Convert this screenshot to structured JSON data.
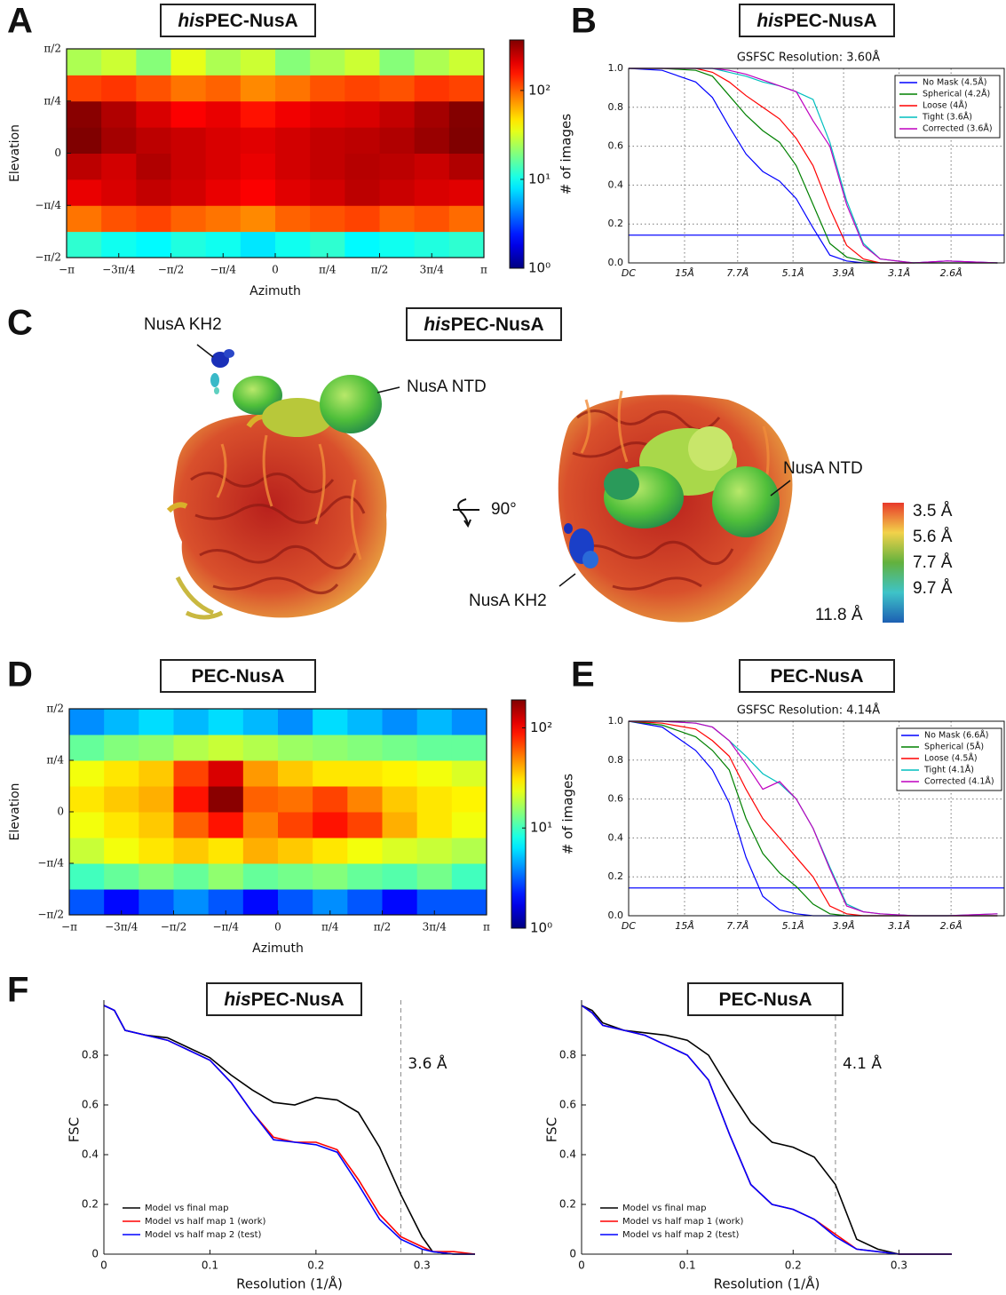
{
  "panel_labels": [
    "A",
    "B",
    "C",
    "D",
    "E",
    "F"
  ],
  "map_panel": {
    "title_italic": "his",
    "title": "PEC-NusA",
    "labels": [
      "NusA KH2",
      "NusA NTD",
      "90°",
      "NusA NTD",
      "NusA KH2"
    ],
    "colorbar_labels": [
      "3.5 Å",
      "5.6 Å",
      "7.7 Å",
      "9.7 Å",
      "11.8 Å"
    ]
  },
  "chart_data": [
    {
      "type": "heatmap",
      "title_italic": "his",
      "title": "PEC-NusA",
      "xlabel": "Azimuth",
      "ylabel": "Elevation",
      "colorbar_label": "# of images",
      "xlim": [
        -3.1416,
        3.1416
      ],
      "ylim": [
        -1.5708,
        1.5708
      ],
      "clim": [
        1,
        370
      ],
      "log": true,
      "colormap": "jet",
      "xticks": [
        {
          "value": -3.1416,
          "label": "−π"
        },
        {
          "value": -2.3562,
          "label": "−3π/4"
        },
        {
          "value": -1.5708,
          "label": "−π/2"
        },
        {
          "value": -0.7854,
          "label": "−π/4"
        },
        0,
        {
          "value": 0.7854,
          "label": "π/4"
        },
        {
          "value": 1.5708,
          "label": "π/2"
        },
        {
          "value": 2.3562,
          "label": "3π/4"
        },
        {
          "value": 3.1416,
          "label": "π"
        }
      ],
      "yticks": [
        {
          "value": -1.5708,
          "label": "−π/2"
        },
        {
          "value": -0.7854,
          "label": "−π/4"
        },
        0,
        {
          "value": 0.7854,
          "label": "π/4"
        },
        {
          "value": 1.5708,
          "label": "π/2"
        }
      ],
      "cticks": [
        {
          "value": 1,
          "label": "10⁰"
        },
        {
          "value": 10,
          "label": "10¹"
        },
        {
          "value": 100,
          "label": "10²"
        }
      ],
      "values": [
        [
          12,
          10,
          9,
          11,
          10,
          8,
          10,
          12,
          9,
          10,
          11,
          12
        ],
        [
          90,
          110,
          120,
          100,
          90,
          80,
          100,
          110,
          120,
          100,
          110,
          95
        ],
        [
          200,
          220,
          250,
          230,
          200,
          180,
          210,
          230,
          260,
          240,
          220,
          210
        ],
        [
          260,
          230,
          280,
          240,
          220,
          200,
          230,
          250,
          270,
          260,
          240,
          280
        ],
        [
          370,
          300,
          260,
          240,
          220,
          210,
          230,
          250,
          260,
          280,
          320,
          370
        ],
        [
          350,
          280,
          220,
          180,
          200,
          160,
          190,
          210,
          220,
          250,
          300,
          360
        ],
        [
          120,
          130,
          110,
          90,
          100,
          80,
          90,
          110,
          120,
          110,
          130,
          120
        ],
        [
          25,
          30,
          20,
          35,
          25,
          30,
          20,
          25,
          30,
          20,
          25,
          30
        ]
      ]
    },
    {
      "type": "line",
      "title_italic": "his",
      "title": "PEC-NusA",
      "subtitle": "GSFSC Resolution: 3.60Å",
      "grid": true,
      "legend_box": true,
      "xlim": [
        0,
        0.448
      ],
      "ylim": [
        0,
        1
      ],
      "xticks": [
        {
          "value": 0,
          "label": "DC"
        },
        {
          "value": 0.0667,
          "label": "15Å"
        },
        {
          "value": 0.13,
          "label": "7.7Å"
        },
        {
          "value": 0.1961,
          "label": "5.1Å"
        },
        {
          "value": 0.2564,
          "label": "3.9Å"
        },
        {
          "value": 0.3226,
          "label": "3.1Å"
        },
        {
          "value": 0.3846,
          "label": "2.6Å"
        }
      ],
      "yticks": [
        {
          "value": 0,
          "label": "0.0"
        },
        0.2,
        0.4,
        0.6,
        0.8,
        {
          "value": 1,
          "label": "1.0"
        }
      ],
      "threshold": 0.143,
      "threshold_color": "#2020ff",
      "x": [
        0,
        0.04,
        0.08,
        0.1,
        0.12,
        0.14,
        0.16,
        0.18,
        0.2,
        0.22,
        0.24,
        0.26,
        0.28,
        0.3,
        0.34,
        0.38,
        0.44
      ],
      "series": [
        {
          "name": "No Mask (4.5Å)",
          "color": "#0000ff",
          "values": [
            1,
            0.99,
            0.93,
            0.85,
            0.7,
            0.56,
            0.47,
            0.42,
            0.33,
            0.18,
            0.04,
            0.01,
            0,
            0,
            0,
            0.01,
            0
          ]
        },
        {
          "name": "Spherical (4.2Å)",
          "color": "#008000",
          "values": [
            1,
            1,
            0.99,
            0.96,
            0.86,
            0.76,
            0.68,
            0.62,
            0.5,
            0.3,
            0.1,
            0.03,
            0.01,
            0,
            0,
            0,
            0
          ]
        },
        {
          "name": "Loose (4Å)",
          "color": "#ff0000",
          "values": [
            1,
            1,
            1,
            0.98,
            0.93,
            0.86,
            0.8,
            0.74,
            0.64,
            0.5,
            0.28,
            0.09,
            0.02,
            0,
            0,
            0,
            0
          ]
        },
        {
          "name": "Tight (3.6Å)",
          "color": "#00bfbf",
          "values": [
            1,
            1,
            1,
            1,
            0.98,
            0.96,
            0.93,
            0.91,
            0.88,
            0.84,
            0.62,
            0.32,
            0.1,
            0.02,
            0,
            0,
            0
          ]
        },
        {
          "name": "Corrected (3.6Å)",
          "color": "#bf00bf",
          "values": [
            1,
            1,
            1,
            1,
            0.99,
            0.97,
            0.94,
            0.91,
            0.88,
            0.73,
            0.6,
            0.3,
            0.09,
            0.02,
            0,
            0.01,
            0
          ]
        }
      ]
    },
    {
      "type": "heatmap",
      "title": "PEC-NusA",
      "xlabel": "Azimuth",
      "ylabel": "Elevation",
      "colorbar_label": "# of images",
      "xlim": [
        -3.1416,
        3.1416
      ],
      "ylim": [
        -1.5708,
        1.5708
      ],
      "clim": [
        1,
        190
      ],
      "log": true,
      "colormap": "jet",
      "xticks": [
        {
          "value": -3.1416,
          "label": "−π"
        },
        {
          "value": -2.3562,
          "label": "−3π/4"
        },
        {
          "value": -1.5708,
          "label": "−π/2"
        },
        {
          "value": -0.7854,
          "label": "−π/4"
        },
        0,
        {
          "value": 0.7854,
          "label": "π/4"
        },
        {
          "value": 1.5708,
          "label": "π/2"
        },
        {
          "value": 2.3562,
          "label": "3π/4"
        },
        {
          "value": 3.1416,
          "label": "π"
        }
      ],
      "yticks": [
        {
          "value": -1.5708,
          "label": "−π/2"
        },
        {
          "value": -0.7854,
          "label": "−π/4"
        },
        0,
        {
          "value": 0.7854,
          "label": "π/4"
        },
        {
          "value": 1.5708,
          "label": "π/2"
        }
      ],
      "cticks": [
        {
          "value": 1,
          "label": "10⁰"
        },
        {
          "value": 10,
          "label": "10¹"
        },
        {
          "value": 100,
          "label": "10²"
        }
      ],
      "values": [
        [
          3,
          2,
          3,
          4,
          3,
          2,
          3,
          4,
          3,
          2,
          3,
          3
        ],
        [
          10,
          12,
          14,
          12,
          15,
          12,
          13,
          14,
          12,
          11,
          13,
          10
        ],
        [
          20,
          25,
          30,
          35,
          30,
          40,
          35,
          30,
          25,
          22,
          20,
          18
        ],
        [
          25,
          30,
          35,
          60,
          90,
          50,
          70,
          90,
          70,
          40,
          30,
          25
        ],
        [
          30,
          35,
          40,
          90,
          180,
          60,
          55,
          70,
          50,
          35,
          30,
          28
        ],
        [
          25,
          30,
          35,
          70,
          120,
          45,
          35,
          30,
          30,
          28,
          25,
          22
        ],
        [
          12,
          14,
          15,
          18,
          20,
          18,
          16,
          15,
          14,
          13,
          12,
          12
        ],
        [
          4,
          5,
          6,
          5,
          6,
          5,
          4,
          6,
          5,
          4,
          5,
          4
        ]
      ]
    },
    {
      "type": "line",
      "title": "PEC-NusA",
      "subtitle": "GSFSC Resolution: 4.14Å",
      "grid": true,
      "legend_box": true,
      "xlim": [
        0,
        0.448
      ],
      "ylim": [
        0,
        1
      ],
      "xticks": [
        {
          "value": 0,
          "label": "DC"
        },
        {
          "value": 0.0667,
          "label": "15Å"
        },
        {
          "value": 0.13,
          "label": "7.7Å"
        },
        {
          "value": 0.1961,
          "label": "5.1Å"
        },
        {
          "value": 0.2564,
          "label": "3.9Å"
        },
        {
          "value": 0.3226,
          "label": "3.1Å"
        },
        {
          "value": 0.3846,
          "label": "2.6Å"
        }
      ],
      "yticks": [
        {
          "value": 0,
          "label": "0.0"
        },
        0.2,
        0.4,
        0.6,
        0.8,
        {
          "value": 1,
          "label": "1.0"
        }
      ],
      "threshold": 0.143,
      "threshold_color": "#2020ff",
      "x": [
        0,
        0.04,
        0.08,
        0.1,
        0.12,
        0.14,
        0.16,
        0.18,
        0.2,
        0.22,
        0.24,
        0.26,
        0.28,
        0.3,
        0.34,
        0.38,
        0.44
      ],
      "series": [
        {
          "name": "No Mask (6.6Å)",
          "color": "#0000ff",
          "values": [
            1,
            0.97,
            0.85,
            0.75,
            0.58,
            0.3,
            0.1,
            0.03,
            0.01,
            0,
            0,
            0,
            0,
            0,
            0,
            0,
            0
          ]
        },
        {
          "name": "Spherical (5Å)",
          "color": "#008000",
          "values": [
            1,
            0.98,
            0.92,
            0.85,
            0.75,
            0.5,
            0.32,
            0.22,
            0.15,
            0.06,
            0.01,
            0,
            0,
            0,
            0,
            0,
            0
          ]
        },
        {
          "name": "Loose (4.5Å)",
          "color": "#ff0000",
          "values": [
            1,
            0.99,
            0.96,
            0.9,
            0.82,
            0.65,
            0.5,
            0.4,
            0.3,
            0.2,
            0.05,
            0.01,
            0,
            0,
            0,
            0,
            0
          ]
        },
        {
          "name": "Tight (4.1Å)",
          "color": "#00bfbf",
          "values": [
            1,
            1,
            0.99,
            0.97,
            0.9,
            0.82,
            0.73,
            0.68,
            0.6,
            0.45,
            0.25,
            0.06,
            0.02,
            0.01,
            0,
            0,
            0.01
          ]
        },
        {
          "name": "Corrected (4.1Å)",
          "color": "#bf00bf",
          "values": [
            1,
            1,
            0.99,
            0.97,
            0.9,
            0.78,
            0.65,
            0.69,
            0.6,
            0.45,
            0.24,
            0.05,
            0.02,
            0.01,
            0,
            0,
            0.01
          ]
        }
      ]
    },
    {
      "type": "line",
      "title_italic": "his",
      "title": "PEC-NusA",
      "xlabel": "Resolution (1/Å)",
      "ylabel": "FSC",
      "grid": false,
      "legend_box": false,
      "xlim": [
        0,
        0.35
      ],
      "ylim": [
        0,
        1
      ],
      "xticks": [
        0,
        0.1,
        0.2,
        0.3
      ],
      "yticks": [
        0,
        0.2,
        0.4,
        0.6,
        0.8
      ],
      "vline": 0.28,
      "vline_label": "3.6 Å",
      "x": [
        0,
        0.01,
        0.02,
        0.04,
        0.06,
        0.08,
        0.1,
        0.12,
        0.14,
        0.16,
        0.18,
        0.2,
        0.22,
        0.24,
        0.26,
        0.28,
        0.3,
        0.31,
        0.33,
        0.35
      ],
      "series": [
        {
          "name": "Model vs final map",
          "color": "#000000",
          "values": [
            1,
            0.98,
            0.9,
            0.88,
            0.87,
            0.83,
            0.79,
            0.72,
            0.66,
            0.61,
            0.6,
            0.63,
            0.62,
            0.57,
            0.43,
            0.24,
            0.07,
            0.01,
            0,
            0
          ]
        },
        {
          "name": "Model vs half map 1 (work)",
          "color": "#ff0000",
          "values": [
            1,
            0.98,
            0.9,
            0.88,
            0.86,
            0.82,
            0.78,
            0.69,
            0.57,
            0.47,
            0.45,
            0.45,
            0.42,
            0.3,
            0.16,
            0.07,
            0.03,
            0.01,
            0.01,
            0
          ]
        },
        {
          "name": "Model vs half map 2 (test)",
          "color": "#0000ff",
          "values": [
            1,
            0.98,
            0.9,
            0.88,
            0.86,
            0.82,
            0.78,
            0.69,
            0.57,
            0.46,
            0.45,
            0.44,
            0.41,
            0.28,
            0.14,
            0.06,
            0.02,
            0.01,
            0,
            0
          ]
        }
      ]
    },
    {
      "type": "line",
      "title": "PEC-NusA",
      "xlabel": "Resolution (1/Å)",
      "ylabel": "FSC",
      "grid": false,
      "legend_box": false,
      "xlim": [
        0,
        0.35
      ],
      "ylim": [
        0,
        1
      ],
      "xticks": [
        0,
        0.1,
        0.2,
        0.3
      ],
      "yticks": [
        0,
        0.2,
        0.4,
        0.6,
        0.8
      ],
      "vline": 0.24,
      "vline_label": "4.1 Å",
      "x": [
        0,
        0.01,
        0.02,
        0.04,
        0.06,
        0.08,
        0.1,
        0.12,
        0.14,
        0.16,
        0.18,
        0.2,
        0.22,
        0.24,
        0.26,
        0.28,
        0.3,
        0.31,
        0.33,
        0.35
      ],
      "series": [
        {
          "name": "Model vs final map",
          "color": "#000000",
          "values": [
            1,
            0.98,
            0.93,
            0.9,
            0.89,
            0.88,
            0.86,
            0.8,
            0.66,
            0.53,
            0.45,
            0.43,
            0.39,
            0.28,
            0.06,
            0.02,
            0,
            0,
            0,
            0
          ]
        },
        {
          "name": "Model vs half map 1 (work)",
          "color": "#ff0000",
          "values": [
            1,
            0.97,
            0.92,
            0.9,
            0.88,
            0.84,
            0.8,
            0.7,
            0.48,
            0.28,
            0.2,
            0.18,
            0.14,
            0.08,
            0.02,
            0.01,
            0,
            0,
            0,
            0
          ]
        },
        {
          "name": "Model vs half map 2 (test)",
          "color": "#0000ff",
          "values": [
            1,
            0.97,
            0.92,
            0.9,
            0.88,
            0.84,
            0.8,
            0.7,
            0.48,
            0.28,
            0.2,
            0.18,
            0.14,
            0.07,
            0.02,
            0.01,
            0,
            0,
            0,
            0
          ]
        }
      ]
    }
  ]
}
